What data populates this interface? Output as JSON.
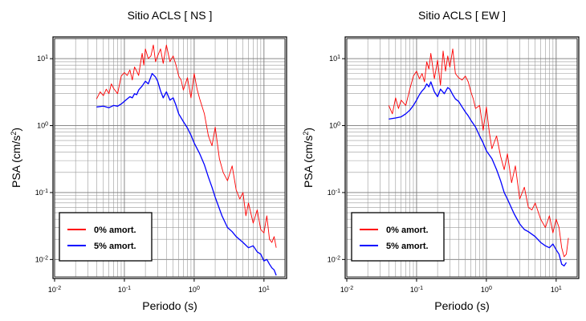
{
  "chart_data": [
    {
      "type": "line",
      "title": "Sitio ACLS [ NS ]",
      "xlabel": "Periodo (s)",
      "ylabel_base": "PSA (cm/s",
      "ylabel_exp": "2",
      "ylabel_close": ")",
      "xscale": "log",
      "yscale": "log",
      "xlim": [
        0.01,
        20
      ],
      "ylim": [
        0.0055,
        20
      ],
      "x_ticks": [
        {
          "base": "10",
          "exp": "-2"
        },
        {
          "base": "10",
          "exp": "-1"
        },
        {
          "base": "10",
          "exp": "0"
        },
        {
          "base": "10",
          "exp": "1"
        }
      ],
      "x_tick_values": [
        0.01,
        0.1,
        1,
        10
      ],
      "y_ticks": [
        {
          "base": "10",
          "exp": "-2"
        },
        {
          "base": "10",
          "exp": "-1"
        },
        {
          "base": "10",
          "exp": "0"
        },
        {
          "base": "10",
          "exp": "1"
        }
      ],
      "y_tick_values": [
        0.01,
        0.1,
        1,
        10
      ],
      "grid": true,
      "legend_position": "bottom-left",
      "series": [
        {
          "name": "0% amort.",
          "color": "#ff0000",
          "x": [
            0.04,
            0.045,
            0.05,
            0.055,
            0.06,
            0.065,
            0.07,
            0.08,
            0.09,
            0.1,
            0.11,
            0.12,
            0.13,
            0.14,
            0.15,
            0.16,
            0.17,
            0.18,
            0.19,
            0.2,
            0.22,
            0.24,
            0.26,
            0.28,
            0.3,
            0.33,
            0.36,
            0.4,
            0.45,
            0.5,
            0.55,
            0.6,
            0.65,
            0.7,
            0.8,
            0.9,
            1.0,
            1.1,
            1.2,
            1.4,
            1.6,
            1.8,
            2.0,
            2.3,
            2.6,
            3.0,
            3.5,
            4.0,
            4.5,
            5.0,
            5.5,
            6.0,
            7.0,
            8.0,
            9.0,
            10,
            11,
            12,
            13,
            14,
            15
          ],
          "y": [
            2.5,
            3.2,
            2.8,
            3.5,
            3.0,
            4.2,
            3.6,
            3.0,
            5.5,
            6.2,
            5.6,
            6.8,
            4.8,
            7.5,
            6.5,
            5.6,
            8.5,
            12,
            8.0,
            14,
            10,
            11,
            16,
            9.0,
            11,
            14,
            8.5,
            16,
            9.0,
            11,
            8.0,
            5.5,
            4.8,
            3.4,
            5.2,
            2.6,
            6.0,
            3.5,
            2.5,
            1.5,
            0.7,
            0.5,
            0.95,
            0.32,
            0.2,
            0.15,
            0.25,
            0.11,
            0.08,
            0.1,
            0.045,
            0.07,
            0.035,
            0.055,
            0.028,
            0.025,
            0.045,
            0.02,
            0.018,
            0.022,
            0.015
          ]
        },
        {
          "name": "5% amort.",
          "color": "#0000ff",
          "x": [
            0.04,
            0.05,
            0.06,
            0.07,
            0.08,
            0.09,
            0.1,
            0.11,
            0.12,
            0.13,
            0.14,
            0.15,
            0.16,
            0.18,
            0.2,
            0.22,
            0.25,
            0.28,
            0.3,
            0.33,
            0.36,
            0.4,
            0.45,
            0.5,
            0.55,
            0.6,
            0.7,
            0.8,
            0.9,
            1.0,
            1.2,
            1.4,
            1.6,
            1.8,
            2.0,
            2.5,
            3.0,
            3.5,
            4.0,
            5.0,
            6.0,
            7.0,
            8.0,
            9.0,
            10,
            11,
            12,
            13,
            14,
            15
          ],
          "y": [
            1.9,
            1.95,
            1.85,
            2.0,
            1.95,
            2.1,
            2.3,
            2.5,
            2.7,
            2.6,
            3.0,
            2.9,
            3.4,
            3.9,
            4.6,
            4.2,
            6.0,
            5.3,
            4.6,
            3.3,
            2.6,
            3.2,
            2.4,
            2.6,
            2.0,
            1.5,
            1.15,
            0.92,
            0.72,
            0.55,
            0.38,
            0.26,
            0.17,
            0.12,
            0.085,
            0.045,
            0.03,
            0.026,
            0.022,
            0.018,
            0.015,
            0.016,
            0.013,
            0.012,
            0.0095,
            0.01,
            0.0085,
            0.0075,
            0.007,
            0.0058
          ]
        }
      ]
    },
    {
      "type": "line",
      "title": "Sitio ACLS [ EW ]",
      "xlabel": "Periodo (s)",
      "ylabel_base": "PSA (cm/s",
      "ylabel_exp": "2",
      "ylabel_close": ")",
      "xscale": "log",
      "yscale": "log",
      "xlim": [
        0.01,
        20
      ],
      "ylim": [
        0.0055,
        20
      ],
      "x_ticks": [
        {
          "base": "10",
          "exp": "-2"
        },
        {
          "base": "10",
          "exp": "-1"
        },
        {
          "base": "10",
          "exp": "0"
        },
        {
          "base": "10",
          "exp": "1"
        }
      ],
      "x_tick_values": [
        0.01,
        0.1,
        1,
        10
      ],
      "y_ticks": [
        {
          "base": "10",
          "exp": "-2"
        },
        {
          "base": "10",
          "exp": "-1"
        },
        {
          "base": "10",
          "exp": "0"
        },
        {
          "base": "10",
          "exp": "1"
        }
      ],
      "y_tick_values": [
        0.01,
        0.1,
        1,
        10
      ],
      "grid": true,
      "legend_position": "bottom-left",
      "series": [
        {
          "name": "0% amort.",
          "color": "#ff0000",
          "x": [
            0.04,
            0.045,
            0.05,
            0.055,
            0.06,
            0.07,
            0.08,
            0.09,
            0.1,
            0.11,
            0.12,
            0.13,
            0.14,
            0.15,
            0.16,
            0.18,
            0.2,
            0.22,
            0.24,
            0.26,
            0.28,
            0.3,
            0.33,
            0.36,
            0.4,
            0.45,
            0.5,
            0.55,
            0.6,
            0.65,
            0.7,
            0.8,
            0.9,
            1.0,
            1.1,
            1.2,
            1.4,
            1.6,
            1.8,
            2.0,
            2.3,
            2.6,
            3.0,
            3.5,
            4.0,
            4.5,
            5.0,
            6.0,
            7.0,
            8.0,
            9.0,
            10,
            11,
            12,
            13,
            14,
            15
          ],
          "y": [
            2.0,
            1.5,
            2.6,
            1.8,
            2.4,
            2.0,
            3.5,
            5.5,
            6.5,
            5.0,
            6.0,
            4.5,
            9.0,
            7.0,
            12,
            5.0,
            9.5,
            4.0,
            13,
            6.5,
            11,
            7.5,
            14,
            6.0,
            5.2,
            4.8,
            5.5,
            4.5,
            3.2,
            2.5,
            1.8,
            2.0,
            0.85,
            1.9,
            0.8,
            0.45,
            0.7,
            0.35,
            0.22,
            0.38,
            0.14,
            0.25,
            0.08,
            0.12,
            0.06,
            0.055,
            0.07,
            0.04,
            0.03,
            0.045,
            0.025,
            0.04,
            0.03,
            0.015,
            0.011,
            0.012,
            0.021
          ]
        },
        {
          "name": "5% amort.",
          "color": "#0000ff",
          "x": [
            0.04,
            0.05,
            0.06,
            0.07,
            0.08,
            0.09,
            0.1,
            0.11,
            0.12,
            0.13,
            0.14,
            0.15,
            0.16,
            0.18,
            0.2,
            0.22,
            0.25,
            0.28,
            0.3,
            0.33,
            0.36,
            0.4,
            0.45,
            0.5,
            0.55,
            0.6,
            0.7,
            0.8,
            0.9,
            1.0,
            1.2,
            1.4,
            1.6,
            1.8,
            2.0,
            2.5,
            3.0,
            3.5,
            4.0,
            5.0,
            6.0,
            7.0,
            8.0,
            9.0,
            10,
            11,
            12,
            13,
            14
          ],
          "y": [
            1.25,
            1.3,
            1.35,
            1.5,
            1.7,
            2.0,
            2.4,
            2.9,
            3.3,
            3.6,
            4.2,
            3.8,
            4.5,
            3.2,
            2.7,
            3.5,
            3.0,
            3.7,
            3.5,
            2.9,
            2.5,
            2.3,
            1.9,
            1.6,
            1.4,
            1.2,
            0.95,
            0.7,
            0.55,
            0.42,
            0.32,
            0.22,
            0.15,
            0.1,
            0.08,
            0.048,
            0.034,
            0.028,
            0.026,
            0.022,
            0.018,
            0.016,
            0.015,
            0.017,
            0.014,
            0.012,
            0.0085,
            0.008,
            0.009
          ]
        }
      ]
    }
  ]
}
